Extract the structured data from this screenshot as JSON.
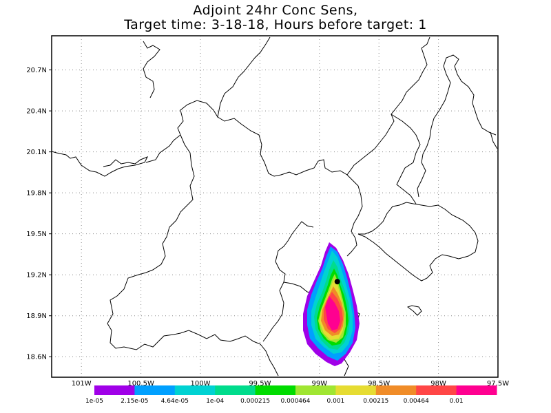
{
  "title": {
    "line1": "Adjoint 24hr Conc Sens,",
    "line2": "Target time: 3-18-18, Hours before target: 1"
  },
  "axes": {
    "lat_ticks": [
      "20.7N",
      "20.4N",
      "20.1N",
      "19.8N",
      "19.5N",
      "19.2N",
      "18.9N",
      "18.6N"
    ],
    "lat_values": [
      20.7,
      20.4,
      20.1,
      19.8,
      19.5,
      19.2,
      18.9,
      18.6
    ],
    "lon_ticks": [
      "101W",
      "100.5W",
      "100W",
      "99.5W",
      "99W",
      "98.5W",
      "98W",
      "97.5W"
    ],
    "lon_values": [
      -101,
      -100.5,
      -100,
      -99.5,
      -99,
      -98.5,
      -98,
      -97.5
    ],
    "lon_range": [
      -101.25,
      -97.5
    ],
    "lat_range": [
      18.45,
      20.95
    ],
    "grid": "dotted"
  },
  "colorbar": {
    "labels": [
      "1e-05",
      "2.15e-05",
      "4.64e-05",
      "1e-04",
      "0.000215",
      "0.000464",
      "0.001",
      "0.00215",
      "0.00464",
      "0.01"
    ],
    "colors": [
      "#a000e8",
      "#00a0ff",
      "#00d2d2",
      "#00dc8c",
      "#00dc00",
      "#a0e632",
      "#e6dc32",
      "#f08c28",
      "#ff4646",
      "#ff0090"
    ]
  },
  "target_marker": {
    "lon": -98.85,
    "lat": 19.15
  },
  "chart_data": {
    "type": "heatmap",
    "title": "Adjoint 24hr Conc Sens, Target time: 3-18-18, Hours before target: 1",
    "levels": [
      1e-05,
      2.15e-05,
      4.64e-05,
      0.0001,
      0.000215,
      0.000464,
      0.001,
      0.00215,
      0.00464,
      0.01
    ],
    "xlim": [
      -101.25,
      -97.5
    ],
    "ylim": [
      18.45,
      20.95
    ]
  }
}
